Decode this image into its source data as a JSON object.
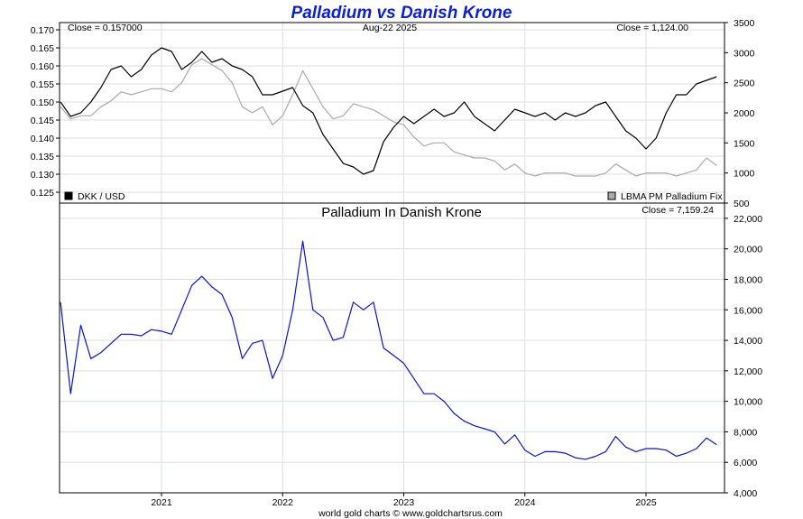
{
  "page": {
    "title": "Palladium vs Danish Krone",
    "credit": "world gold charts © www.goldchartsrus.com"
  },
  "chart_data": [
    {
      "type": "line",
      "title": "Palladium vs Danish Krone",
      "date_label": "Aug-22  2025",
      "left_close": "Close = 0.157000",
      "right_close": "Close = 1,124.00",
      "x_ticks": [
        "2021",
        "2022",
        "2023",
        "2024",
        "2025"
      ],
      "x_range": [
        "2020-03",
        "2025-08"
      ],
      "grid": true,
      "y_left": {
        "ticks": [
          "0.170",
          "0.165",
          "0.160",
          "0.155",
          "0.150",
          "0.145",
          "0.140",
          "0.135",
          "0.130",
          "0.125"
        ],
        "range": [
          0.122,
          0.172
        ]
      },
      "y_right": {
        "ticks": [
          "3500",
          "3000",
          "2500",
          "2000",
          "1500",
          "1000",
          "500"
        ],
        "range": [
          500,
          3500
        ]
      },
      "legend": [
        {
          "name": "DKK / USD",
          "color": "#000000",
          "position": "bottom-left"
        },
        {
          "name": "LBMA PM Palladium Fix",
          "color": "#aaaaaa",
          "position": "bottom-right"
        }
      ],
      "series": [
        {
          "name": "DKK / USD",
          "axis": "left",
          "color": "#000000",
          "x": [
            "2020-03",
            "2020-04",
            "2020-05",
            "2020-06",
            "2020-07",
            "2020-08",
            "2020-09",
            "2020-10",
            "2020-11",
            "2020-12",
            "2021-01",
            "2021-02",
            "2021-03",
            "2021-04",
            "2021-05",
            "2021-06",
            "2021-07",
            "2021-08",
            "2021-09",
            "2021-10",
            "2021-11",
            "2021-12",
            "2022-01",
            "2022-02",
            "2022-03",
            "2022-04",
            "2022-05",
            "2022-06",
            "2022-07",
            "2022-08",
            "2022-09",
            "2022-10",
            "2022-11",
            "2022-12",
            "2023-01",
            "2023-02",
            "2023-03",
            "2023-04",
            "2023-05",
            "2023-06",
            "2023-07",
            "2023-08",
            "2023-09",
            "2023-10",
            "2023-11",
            "2023-12",
            "2024-01",
            "2024-02",
            "2024-03",
            "2024-04",
            "2024-05",
            "2024-06",
            "2024-07",
            "2024-08",
            "2024-09",
            "2024-10",
            "2024-11",
            "2024-12",
            "2025-01",
            "2025-02",
            "2025-03",
            "2025-04",
            "2025-05",
            "2025-06",
            "2025-07",
            "2025-08"
          ],
          "values": [
            0.15,
            0.146,
            0.147,
            0.15,
            0.154,
            0.159,
            0.16,
            0.157,
            0.159,
            0.163,
            0.165,
            0.164,
            0.159,
            0.161,
            0.164,
            0.161,
            0.162,
            0.16,
            0.159,
            0.157,
            0.152,
            0.152,
            0.153,
            0.154,
            0.149,
            0.147,
            0.141,
            0.137,
            0.133,
            0.132,
            0.13,
            0.131,
            0.139,
            0.143,
            0.146,
            0.144,
            0.146,
            0.148,
            0.146,
            0.147,
            0.15,
            0.146,
            0.144,
            0.142,
            0.145,
            0.148,
            0.147,
            0.146,
            0.147,
            0.145,
            0.147,
            0.146,
            0.147,
            0.149,
            0.15,
            0.146,
            0.142,
            0.14,
            0.137,
            0.14,
            0.147,
            0.152,
            0.152,
            0.155,
            0.156,
            0.157
          ]
        },
        {
          "name": "LBMA PM Palladium Fix",
          "axis": "right",
          "color": "#aaaaaa",
          "x": [
            "2020-03",
            "2020-04",
            "2020-05",
            "2020-06",
            "2020-07",
            "2020-08",
            "2020-09",
            "2020-10",
            "2020-11",
            "2020-12",
            "2021-01",
            "2021-02",
            "2021-03",
            "2021-04",
            "2021-05",
            "2021-06",
            "2021-07",
            "2021-08",
            "2021-09",
            "2021-10",
            "2021-11",
            "2021-12",
            "2022-01",
            "2022-02",
            "2022-03",
            "2022-04",
            "2022-05",
            "2022-06",
            "2022-07",
            "2022-08",
            "2022-09",
            "2022-10",
            "2022-11",
            "2022-12",
            "2023-01",
            "2023-02",
            "2023-03",
            "2023-04",
            "2023-05",
            "2023-06",
            "2023-07",
            "2023-08",
            "2023-09",
            "2023-10",
            "2023-11",
            "2023-12",
            "2024-01",
            "2024-02",
            "2024-03",
            "2024-04",
            "2024-05",
            "2024-06",
            "2024-07",
            "2024-08",
            "2024-09",
            "2024-10",
            "2024-11",
            "2024-12",
            "2025-01",
            "2025-02",
            "2025-03",
            "2025-04",
            "2025-05",
            "2025-06",
            "2025-07",
            "2025-08"
          ],
          "values": [
            2100,
            1900,
            1950,
            1950,
            2100,
            2200,
            2350,
            2300,
            2350,
            2400,
            2400,
            2350,
            2500,
            2800,
            2900,
            2800,
            2700,
            2500,
            2100,
            2000,
            2100,
            1800,
            1950,
            2300,
            2700,
            2400,
            2100,
            1900,
            1950,
            2150,
            2100,
            2050,
            1950,
            1850,
            1800,
            1600,
            1450,
            1500,
            1500,
            1350,
            1300,
            1250,
            1250,
            1200,
            1050,
            1150,
            1000,
            950,
            1000,
            1000,
            1000,
            950,
            950,
            950,
            1000,
            1150,
            1050,
            950,
            1000,
            1000,
            1000,
            950,
            1000,
            1050,
            1250,
            1124
          ]
        }
      ]
    },
    {
      "type": "line",
      "title": "Palladium In Danish Krone",
      "close_label": "Close = 7,159.24",
      "x_ticks": [
        "2021",
        "2022",
        "2023",
        "2024",
        "2025"
      ],
      "x_range": [
        "2020-03",
        "2025-08"
      ],
      "grid": true,
      "y": {
        "ticks": [
          "22,000",
          "20,000",
          "18,000",
          "16,000",
          "14,000",
          "12,000",
          "10,000",
          "8,000",
          "6,000",
          "4,000"
        ],
        "range": [
          4000,
          23000
        ]
      },
      "series": [
        {
          "name": "Palladium In Danish Krone",
          "color": "#0a14d2",
          "x": [
            "2020-03",
            "2020-04",
            "2020-05",
            "2020-06",
            "2020-07",
            "2020-08",
            "2020-09",
            "2020-10",
            "2020-11",
            "2020-12",
            "2021-01",
            "2021-02",
            "2021-03",
            "2021-04",
            "2021-05",
            "2021-06",
            "2021-07",
            "2021-08",
            "2021-09",
            "2021-10",
            "2021-11",
            "2021-12",
            "2022-01",
            "2022-02",
            "2022-03",
            "2022-04",
            "2022-05",
            "2022-06",
            "2022-07",
            "2022-08",
            "2022-09",
            "2022-10",
            "2022-11",
            "2022-12",
            "2023-01",
            "2023-02",
            "2023-03",
            "2023-04",
            "2023-05",
            "2023-06",
            "2023-07",
            "2023-08",
            "2023-09",
            "2023-10",
            "2023-11",
            "2023-12",
            "2024-01",
            "2024-02",
            "2024-03",
            "2024-04",
            "2024-05",
            "2024-06",
            "2024-07",
            "2024-08",
            "2024-09",
            "2024-10",
            "2024-11",
            "2024-12",
            "2025-01",
            "2025-02",
            "2025-03",
            "2025-04",
            "2025-05",
            "2025-06",
            "2025-07",
            "2025-08"
          ],
          "values": [
            16500,
            10500,
            15000,
            12800,
            13200,
            13800,
            14400,
            14400,
            14300,
            14700,
            14600,
            14400,
            16000,
            17600,
            18200,
            17500,
            17000,
            15500,
            12800,
            13800,
            14000,
            11500,
            13000,
            16000,
            20500,
            16000,
            15500,
            14000,
            14200,
            16500,
            16000,
            16500,
            13500,
            13000,
            12500,
            11500,
            10500,
            10500,
            10000,
            9200,
            8700,
            8400,
            8200,
            8000,
            7200,
            7800,
            6800,
            6400,
            6700,
            6700,
            6600,
            6300,
            6200,
            6400,
            6700,
            7700,
            7000,
            6700,
            6900,
            6900,
            6800,
            6400,
            6600,
            6900,
            7600,
            7159
          ]
        }
      ]
    }
  ]
}
